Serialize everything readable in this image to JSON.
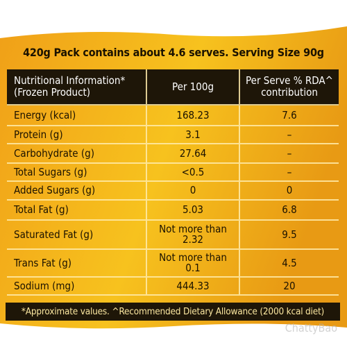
{
  "header": {
    "title": "420g Pack contains about 4.6 serves. Serving Size 90g"
  },
  "table": {
    "columns": [
      [
        "Nutritional Information*",
        "(Frozen Product)"
      ],
      [
        "Per 100g"
      ],
      [
        "Per Serve % RDA^",
        "contribution"
      ]
    ],
    "rows": [
      [
        "Energy (kcal)",
        "168.23",
        "7.6"
      ],
      [
        "Protein (g)",
        "3.1",
        "–"
      ],
      [
        "Carbohydrate (g)",
        "27.64",
        "–"
      ],
      [
        "Total Sugars (g)",
        "<0.5",
        "–"
      ],
      [
        "Added Sugars (g)",
        "0",
        "0"
      ],
      [
        "Total Fat (g)",
        "5.03",
        "6.8"
      ],
      [
        "Saturated Fat (g)",
        "Not more than 2.32",
        "9.5"
      ],
      [
        "Trans Fat (g)",
        "Not more than 0.1",
        "4.5"
      ],
      [
        "Sodium (mg)",
        "444.33",
        "20"
      ]
    ]
  },
  "footer": {
    "note": "*Approximate values. ^Recommended Dietary Allowance (2000 kcal diet)"
  },
  "watermark": "ChattyBao"
}
